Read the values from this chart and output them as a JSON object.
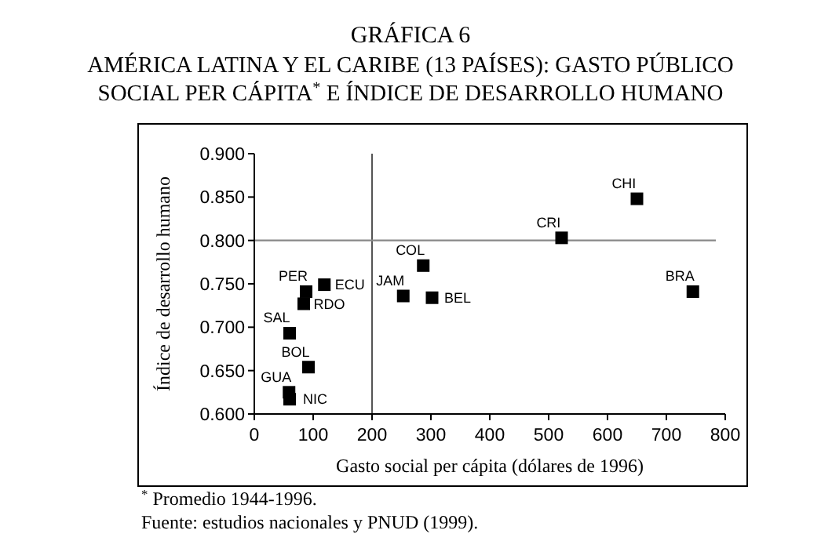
{
  "chart_data": {
    "type": "scatter",
    "title": "GRÁFICA 6",
    "subtitle": "AMÉRICA LATINA Y EL CARIBE (13 PAÍSES): GASTO PÚBLICO SOCIAL PER CÁPITA$^{*}$ E ÍNDICE DE DESARROLLO HUMANO",
    "xlabel": "Gasto social per  cápita (dólares de 1996)",
    "ylabel": "Índice de desarrollo humano",
    "series": [
      {
        "color": "#000000",
        "x": [
          88,
          84,
          119,
          60,
          92,
          59,
          60,
          287,
          253,
          302,
          522,
          650,
          745
        ],
        "values": [
          0.741,
          0.727,
          0.749,
          0.693,
          0.654,
          0.625,
          0.617,
          0.771,
          0.736,
          0.734,
          0.803,
          0.848,
          0.741
        ]
      }
    ],
    "marker": "square",
    "xlim": [
      0,
      800
    ],
    "xticks": [
      0,
      100,
      200,
      300,
      400,
      500,
      600,
      700,
      800
    ],
    "ylim": [
      0.6,
      0.9
    ],
    "yticks": [
      {
        "value": 0.6,
        "label": "0.600"
      },
      {
        "value": 0.65,
        "label": "0.650"
      },
      {
        "value": 0.7,
        "label": "0.700"
      },
      {
        "value": 0.75,
        "label": "0.750"
      },
      {
        "value": 0.8,
        "label": "0.800"
      },
      {
        "value": 0.85,
        "label": "0.850"
      },
      {
        "value": 0.9,
        "label": "0.900"
      }
    ],
    "ref_lines": [
      {
        "axis": "x",
        "value": 200,
        "color": "#555555"
      },
      {
        "axis": "y",
        "value": 0.8,
        "color": "#888888"
      }
    ],
    "annotations": [
      {
        "text": "PER",
        "x": 88,
        "y": 0.741
      },
      {
        "text": "RDO",
        "x": 84,
        "y": 0.727
      },
      {
        "text": "ECU",
        "x": 119,
        "y": 0.749
      },
      {
        "text": "SAL",
        "x": 60,
        "y": 0.693
      },
      {
        "text": "BOL",
        "x": 92,
        "y": 0.654
      },
      {
        "text": "GUA",
        "x": 59,
        "y": 0.625
      },
      {
        "text": "NIC",
        "x": 60,
        "y": 0.617
      },
      {
        "text": "COL",
        "x": 287,
        "y": 0.771
      },
      {
        "text": "JAM",
        "x": 253,
        "y": 0.736
      },
      {
        "text": "BEL",
        "x": 302,
        "y": 0.734
      },
      {
        "text": "CRI",
        "x": 522,
        "y": 0.803
      },
      {
        "text": "CHI",
        "x": 650,
        "y": 0.848
      },
      {
        "text": "BRA",
        "x": 745,
        "y": 0.741
      },
      "$^{*}$ Promedio 1944-1996.",
      "Fuente: estudios nacionales y PNUD (1999)."
    ],
    "grid": false
  }
}
